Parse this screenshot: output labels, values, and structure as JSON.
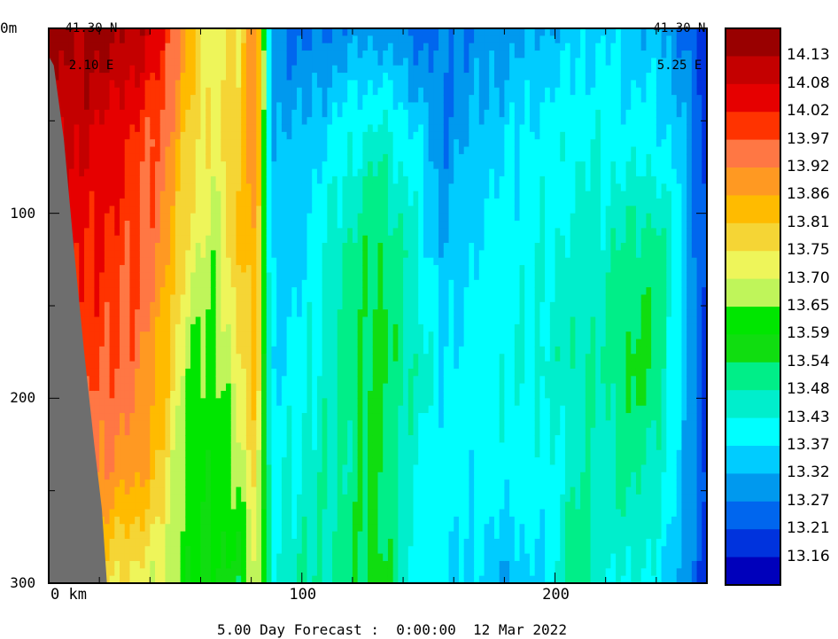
{
  "chart_data": {
    "type": "heatmap",
    "title": "",
    "left_position": {
      "lat": "41.30 N",
      "lon": "2.10 E"
    },
    "right_position": {
      "lat": "41.30 N",
      "lon": "5.25 E"
    },
    "xlabel": "",
    "x_tick_labels": [
      "0 km",
      "100",
      "200"
    ],
    "x_ticks": [
      0,
      100,
      200
    ],
    "xlim": [
      0,
      260
    ],
    "y_tick_labels": [
      "0m",
      "100",
      "200",
      "300"
    ],
    "y_ticks": [
      0,
      100,
      200,
      300
    ],
    "ylim": [
      0,
      300
    ],
    "footer": "5.00 Day Forecast :  0:00:00  12 Mar 2022",
    "colorbar": {
      "labels": [
        "14.13",
        "14.08",
        "14.02",
        "13.97",
        "13.92",
        "13.86",
        "13.81",
        "13.75",
        "13.70",
        "13.65",
        "13.59",
        "13.54",
        "13.48",
        "13.43",
        "13.37",
        "13.32",
        "13.27",
        "13.21",
        "13.16"
      ],
      "colors": [
        "#990000",
        "#c40000",
        "#e60000",
        "#ff3300",
        "#ff7744",
        "#ff9922",
        "#ffbb00",
        "#f5d535",
        "#eef55a",
        "#bff55a",
        "#00e600",
        "#10dd10",
        "#00ee88",
        "#00eecc",
        "#00ffff",
        "#00ccff",
        "#0099ee",
        "#0066ee",
        "#0033dd",
        "#0000bb"
      ]
    },
    "columns": [
      {
        "x": 0,
        "vals": [
          14.15,
          14.1,
          14.05,
          14.0,
          13.95,
          13.9
        ]
      },
      {
        "x": 15,
        "vals": [
          14.15,
          14.08,
          14.02,
          13.99,
          13.93,
          13.85
        ]
      },
      {
        "x": 25,
        "vals": [
          14.16,
          14.05,
          14.0,
          13.97,
          13.9,
          13.75
        ]
      },
      {
        "x": 35,
        "vals": [
          14.12,
          14.0,
          13.98,
          13.94,
          13.88,
          13.72
        ]
      },
      {
        "x": 45,
        "vals": [
          14.05,
          13.95,
          13.9,
          13.85,
          13.78,
          13.7
        ]
      },
      {
        "x": 55,
        "vals": [
          13.85,
          13.8,
          13.72,
          13.66,
          13.62,
          13.6
        ]
      },
      {
        "x": 65,
        "vals": [
          13.72,
          13.72,
          13.68,
          13.62,
          13.6,
          13.58
        ]
      },
      {
        "x": 75,
        "vals": [
          13.75,
          13.8,
          13.8,
          13.74,
          13.66,
          13.56
        ]
      },
      {
        "x": 82,
        "vals": [
          13.95,
          13.92,
          13.88,
          13.84,
          13.78,
          13.7
        ]
      },
      {
        "x": 88,
        "vals": [
          13.3,
          13.33,
          13.34,
          13.36,
          13.4,
          13.45
        ]
      },
      {
        "x": 100,
        "vals": [
          13.25,
          13.33,
          13.36,
          13.4,
          13.44,
          13.48
        ]
      },
      {
        "x": 115,
        "vals": [
          13.28,
          13.4,
          13.47,
          13.5,
          13.48,
          13.5
        ]
      },
      {
        "x": 130,
        "vals": [
          13.3,
          13.46,
          13.55,
          13.57,
          13.56,
          13.57
        ]
      },
      {
        "x": 145,
        "vals": [
          13.25,
          13.38,
          13.45,
          13.47,
          13.42,
          13.4
        ]
      },
      {
        "x": 155,
        "vals": [
          13.26,
          13.28,
          13.32,
          13.38,
          13.4,
          13.38
        ]
      },
      {
        "x": 170,
        "vals": [
          13.28,
          13.34,
          13.38,
          13.4,
          13.39,
          13.36
        ]
      },
      {
        "x": 180,
        "vals": [
          13.3,
          13.36,
          13.4,
          13.42,
          13.4,
          13.32
        ]
      },
      {
        "x": 195,
        "vals": [
          13.32,
          13.4,
          13.42,
          13.44,
          13.4,
          13.37
        ]
      },
      {
        "x": 210,
        "vals": [
          13.35,
          13.42,
          13.45,
          13.48,
          13.47,
          13.55
        ]
      },
      {
        "x": 220,
        "vals": [
          13.36,
          13.42,
          13.46,
          13.48,
          13.46,
          13.42
        ]
      },
      {
        "x": 230,
        "vals": [
          13.34,
          13.4,
          13.5,
          13.56,
          13.5,
          13.44
        ]
      },
      {
        "x": 240,
        "vals": [
          13.32,
          13.4,
          13.52,
          13.54,
          13.46,
          13.4
        ]
      },
      {
        "x": 250,
        "vals": [
          13.28,
          13.34,
          13.38,
          13.36,
          13.34,
          13.32
        ]
      },
      {
        "x": 257,
        "vals": [
          13.2,
          13.22,
          13.24,
          13.22,
          13.24,
          13.22
        ]
      },
      {
        "x": 260,
        "vals": [
          13.16,
          13.18,
          13.2,
          13.18,
          13.2,
          13.18
        ]
      }
    ],
    "depth_samples": [
      0,
      60,
      120,
      180,
      240,
      300
    ],
    "bathymetry": [
      [
        0,
        15
      ],
      [
        2,
        20
      ],
      [
        6,
        60
      ],
      [
        10,
        120
      ],
      [
        14,
        175
      ],
      [
        18,
        225
      ],
      [
        21,
        260
      ],
      [
        23,
        300
      ]
    ],
    "land_color": "#6e6e6e"
  }
}
